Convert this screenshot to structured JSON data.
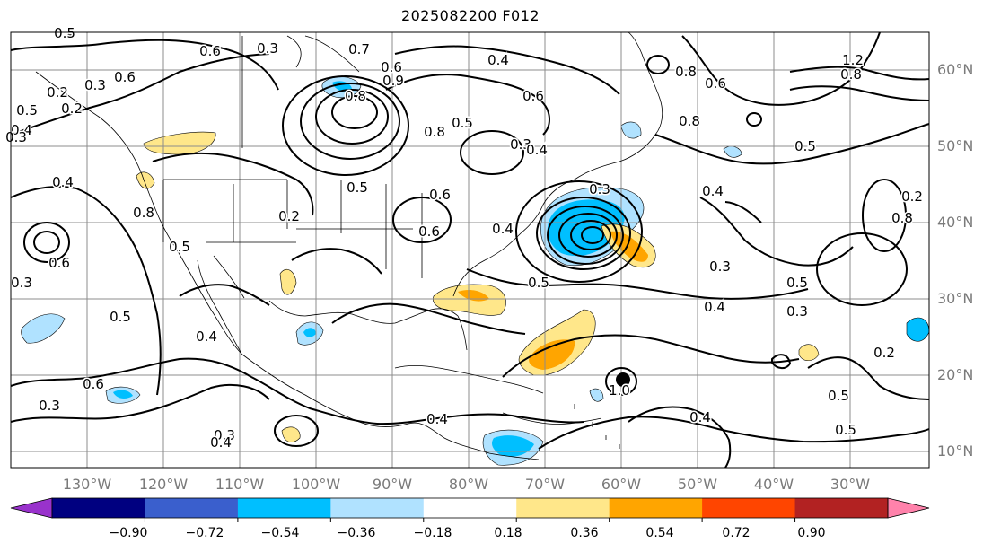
{
  "title": "2025082200 F012",
  "lat_labels": [
    "60°N",
    "50°N",
    "40°N",
    "30°N",
    "20°N",
    "10°N"
  ],
  "lon_labels": [
    "130°W",
    "120°W",
    "110°W",
    "100°W",
    "90°W",
    "80°W",
    "70°W",
    "60°W",
    "50°W",
    "40°W",
    "30°W"
  ],
  "colorbar": {
    "ticks": [
      "−0.90",
      "−0.72",
      "−0.54",
      "−0.36",
      "−0.18",
      "0.18",
      "0.36",
      "0.54",
      "0.72",
      "0.90"
    ],
    "colors": [
      "#9932cc",
      "#000080",
      "#3a5fcd",
      "#00bfff",
      "#b0e2ff",
      "#ffffff",
      "#ffe78a",
      "#ffa500",
      "#ff4500",
      "#b22222",
      "#ff82ab"
    ]
  },
  "contour_labels": [
    "0.4",
    "0.2",
    "0.3",
    "0.7",
    "0.6",
    "0.8",
    "0.9",
    "0.4",
    "0.6",
    "0.8",
    "0.5",
    "1.2",
    "0.8",
    "0.6",
    "0.8",
    "0.8",
    "0.5",
    "0.4",
    "0.6",
    "0.5",
    "0.3",
    "0.8",
    "0.4",
    "0.5",
    "0.4",
    "0.5",
    "0.3",
    "0.6",
    "0.4",
    "0.2",
    "0.5",
    "0.6",
    "0.3",
    "0.4",
    "0.5",
    "0.3",
    "0.4",
    "0.3",
    "0.5",
    "0.6",
    "0.3",
    "0.4",
    "0.4",
    "0.5",
    "0.2",
    "0.2",
    "0.3",
    "0.4",
    "0.2",
    "0.6",
    "0.3",
    "0.2",
    "0.5",
    "0.3",
    "0.8",
    "0.4",
    "1.0",
    "0.5",
    "0.6"
  ],
  "map_colors": {
    "contour": "#000000",
    "coast": "#000000",
    "grid": "#8c8c8c",
    "negative_light": "#b0e2ff",
    "negative_mid": "#00bfff",
    "positive_light": "#ffe78a",
    "positive_mid": "#ffa500",
    "marker": "#000000"
  },
  "marker": {
    "name": "storm-center-marker",
    "lon": -60.5,
    "lat": 19.5
  }
}
